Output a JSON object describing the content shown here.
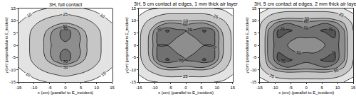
{
  "chart_data": [
    {
      "type": "contour",
      "title": "3H, full contact",
      "x_label": "x (cm) (parallel to E_incident)",
      "y_label": "y (cm) (perpendicular to E_incident)",
      "x": [
        -15,
        -12,
        -9,
        -6,
        -3,
        0,
        3,
        6,
        9,
        12,
        15
      ],
      "y": [
        -15,
        -12,
        -9,
        -6,
        -3,
        0,
        3,
        6,
        9,
        12,
        15
      ],
      "z": [
        [
          5,
          6,
          8,
          10,
          12,
          14,
          12,
          10,
          8,
          6,
          5
        ],
        [
          8,
          10,
          14,
          20,
          25,
          28,
          25,
          20,
          14,
          10,
          8
        ],
        [
          10,
          15,
          25,
          35,
          45,
          50,
          45,
          35,
          25,
          15,
          10
        ],
        [
          12,
          20,
          35,
          50,
          65,
          75,
          65,
          50,
          35,
          20,
          12
        ],
        [
          12,
          22,
          38,
          55,
          68,
          72,
          68,
          55,
          38,
          22,
          12
        ],
        [
          12,
          22,
          38,
          55,
          65,
          68,
          65,
          55,
          38,
          22,
          12
        ],
        [
          12,
          22,
          38,
          55,
          68,
          72,
          68,
          55,
          38,
          22,
          12
        ],
        [
          12,
          20,
          35,
          50,
          65,
          75,
          65,
          50,
          35,
          20,
          12
        ],
        [
          10,
          15,
          25,
          35,
          45,
          50,
          45,
          35,
          25,
          15,
          10
        ],
        [
          8,
          10,
          14,
          20,
          25,
          28,
          25,
          20,
          14,
          10,
          8
        ],
        [
          5,
          6,
          8,
          10,
          12,
          14,
          12,
          10,
          8,
          6,
          5
        ]
      ],
      "levels": [
        10,
        25,
        50,
        60,
        70,
        75
      ],
      "xlim": [
        -15,
        15
      ],
      "ylim": [
        -15,
        15
      ],
      "xticks": [
        -15,
        -10,
        -5,
        0,
        5,
        10,
        15
      ],
      "yticks": [
        -15,
        -10,
        -5,
        0,
        5,
        10,
        15
      ]
    },
    {
      "type": "contour",
      "title": "3H, 5 cm contact at edges, 1 mm thick air layer",
      "x_label": "x (cm) (parallel to E_incident)",
      "y_label": "y (cm) (perpendicular to E_incident)",
      "x": [
        -15,
        -12,
        -9,
        -6,
        -3,
        0,
        3,
        6,
        9,
        12,
        15
      ],
      "y": [
        -15,
        -12,
        -9,
        -6,
        -3,
        0,
        3,
        6,
        9,
        12,
        15
      ],
      "z": [
        [
          5,
          8,
          10,
          12,
          12,
          12,
          12,
          12,
          10,
          8,
          5
        ],
        [
          10,
          18,
          25,
          30,
          30,
          30,
          30,
          30,
          25,
          18,
          10
        ],
        [
          15,
          30,
          50,
          60,
          60,
          58,
          60,
          60,
          50,
          30,
          15
        ],
        [
          18,
          45,
          70,
          76,
          72,
          70,
          72,
          76,
          70,
          45,
          18
        ],
        [
          20,
          50,
          72,
          72,
          70,
          70,
          70,
          72,
          72,
          50,
          20
        ],
        [
          20,
          50,
          70,
          70,
          70,
          70,
          70,
          70,
          70,
          50,
          20
        ],
        [
          20,
          50,
          72,
          72,
          70,
          70,
          70,
          72,
          72,
          50,
          20
        ],
        [
          18,
          45,
          70,
          76,
          72,
          70,
          72,
          76,
          70,
          45,
          18
        ],
        [
          15,
          30,
          50,
          60,
          60,
          58,
          60,
          60,
          50,
          30,
          15
        ],
        [
          10,
          18,
          25,
          30,
          30,
          30,
          30,
          30,
          25,
          18,
          10
        ],
        [
          5,
          8,
          10,
          12,
          12,
          12,
          12,
          12,
          10,
          8,
          5
        ]
      ],
      "levels": [
        10,
        25,
        50,
        60,
        70,
        75
      ],
      "xlim": [
        -15,
        15
      ],
      "ylim": [
        -15,
        15
      ],
      "xticks": [
        -15,
        -10,
        -5,
        0,
        5,
        10,
        15
      ],
      "yticks": [
        -15,
        -10,
        -5,
        0,
        5,
        10,
        15
      ]
    },
    {
      "type": "contour",
      "title": "3H, 5 cm contact at edges, 2 mm thick air layer",
      "x_label": "x (cm) (parallel to E_incident)",
      "y_label": "y (cm) (perpendicular to E_incident)",
      "x": [
        -15,
        -12,
        -9,
        -6,
        -3,
        0,
        3,
        6,
        9,
        12,
        15
      ],
      "y": [
        -15,
        -12,
        -9,
        -6,
        -3,
        0,
        3,
        6,
        9,
        12,
        15
      ],
      "z": [
        [
          6,
          10,
          12,
          14,
          14,
          14,
          14,
          14,
          12,
          10,
          6
        ],
        [
          12,
          25,
          35,
          40,
          40,
          40,
          40,
          40,
          35,
          25,
          12
        ],
        [
          20,
          50,
          65,
          70,
          68,
          66,
          68,
          70,
          65,
          50,
          20
        ],
        [
          25,
          62,
          76,
          76,
          74,
          72,
          74,
          76,
          76,
          62,
          25
        ],
        [
          28,
          65,
          75,
          72,
          70,
          70,
          70,
          72,
          75,
          65,
          28
        ],
        [
          28,
          65,
          74,
          70,
          68,
          68,
          68,
          70,
          74,
          65,
          28
        ],
        [
          28,
          65,
          75,
          72,
          70,
          70,
          70,
          72,
          75,
          65,
          28
        ],
        [
          25,
          62,
          76,
          76,
          74,
          72,
          74,
          76,
          76,
          62,
          25
        ],
        [
          20,
          50,
          65,
          70,
          68,
          66,
          68,
          70,
          65,
          50,
          20
        ],
        [
          12,
          25,
          35,
          40,
          40,
          40,
          40,
          40,
          35,
          25,
          12
        ],
        [
          6,
          10,
          12,
          14,
          14,
          14,
          14,
          14,
          12,
          10,
          6
        ]
      ],
      "levels": [
        10,
        25,
        50,
        60,
        70,
        75
      ],
      "xlim": [
        -15,
        15
      ],
      "ylim": [
        -15,
        15
      ],
      "xticks": [
        -15,
        -10,
        -5,
        0,
        5,
        10,
        15
      ],
      "yticks": [
        -15,
        -10,
        -5,
        0,
        5,
        10,
        15
      ]
    }
  ]
}
